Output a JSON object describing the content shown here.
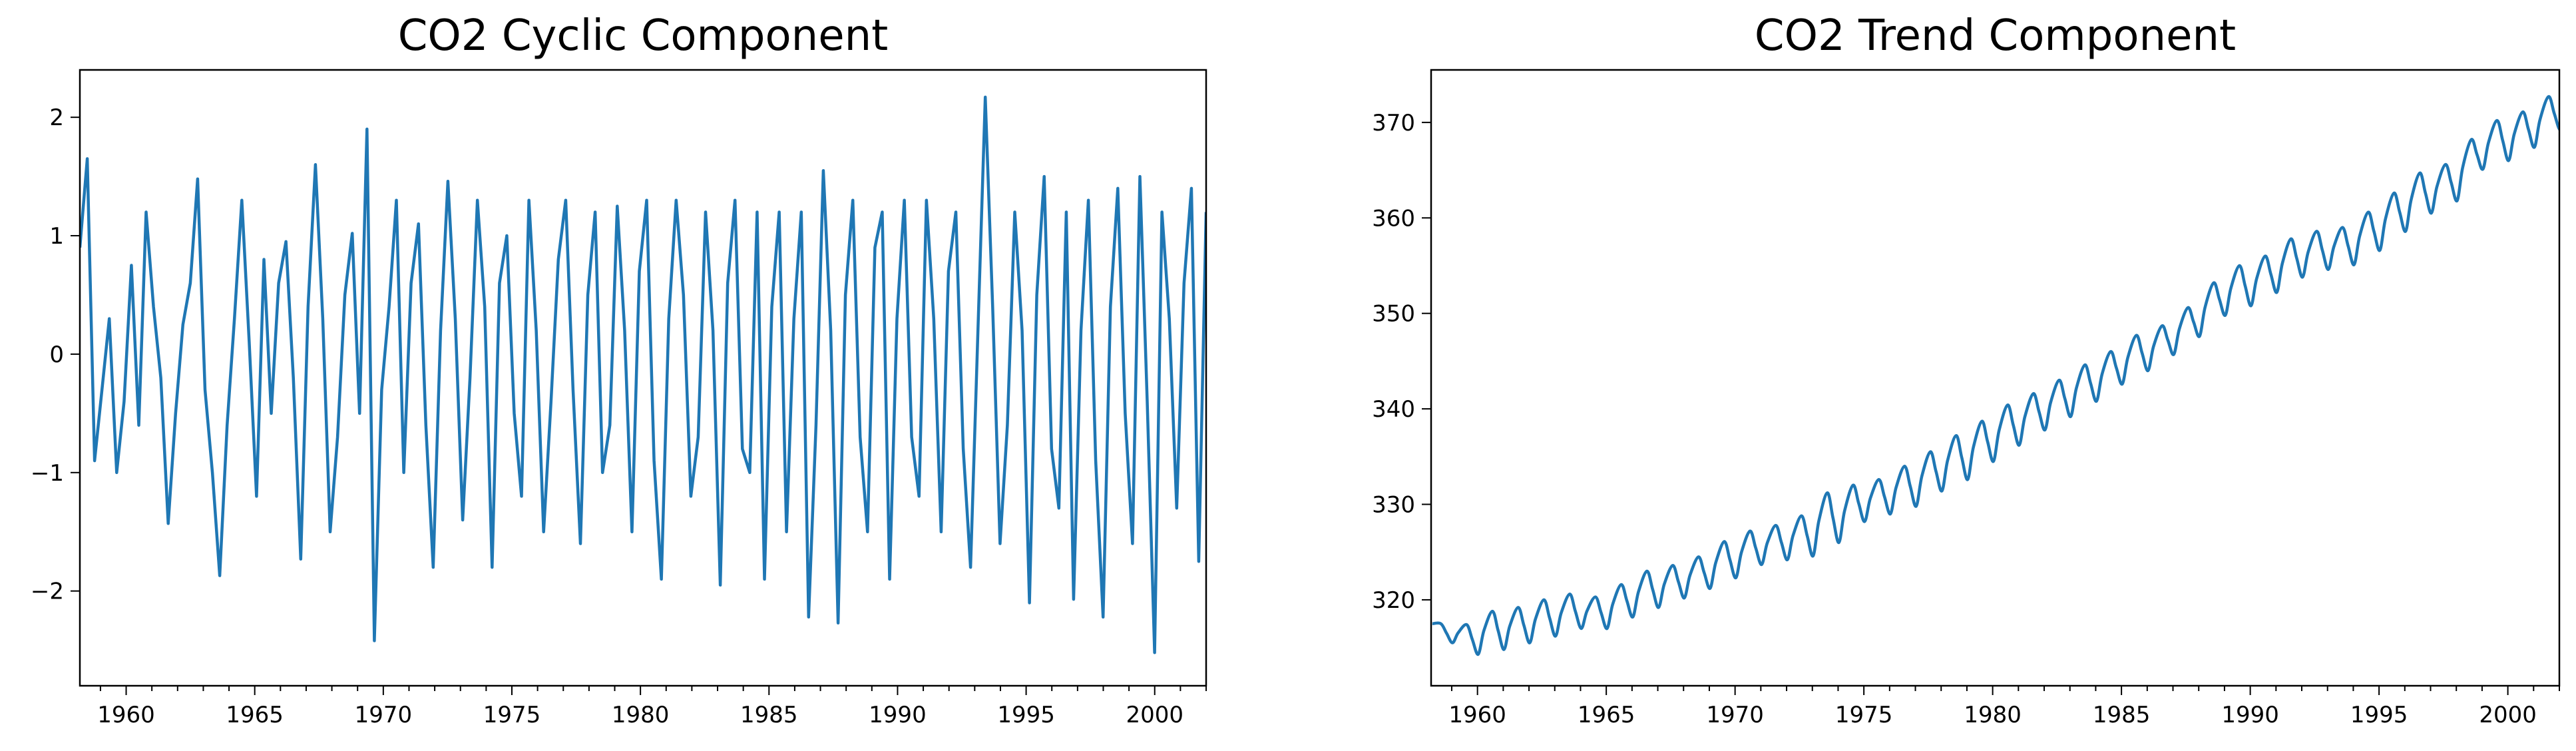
{
  "chart_data": [
    {
      "type": "line",
      "title": "CO2 Cyclic Component",
      "xlabel": "",
      "ylabel": "",
      "xlim": [
        1958.2,
        2002.0
      ],
      "ylim": [
        -2.8,
        2.4
      ],
      "xticks": [
        1960,
        1965,
        1970,
        1975,
        1980,
        1985,
        1990,
        1995,
        2000
      ],
      "xtick_labels": [
        "1960",
        "1965",
        "1970",
        "1975",
        "1980",
        "1985",
        "1990",
        "1995",
        "2000"
      ],
      "yticks": [
        -2,
        -1,
        0,
        1,
        2
      ],
      "ytick_labels": [
        "−2",
        "−1",
        "0",
        "1",
        "2"
      ],
      "grid": false,
      "series": [
        {
          "color": "#1f77b4",
          "x_start": 1958.25,
          "x_step": 0.0833,
          "values": [
            0.9,
            1.65,
            -0.9,
            -0.3,
            0.3,
            -1.0,
            -0.4,
            0.75,
            -0.6,
            1.2,
            0.4,
            -0.2,
            -1.43,
            -0.5,
            0.25,
            0.6,
            1.48,
            -0.3,
            -1.0,
            -1.87,
            -0.6,
            0.3,
            1.3,
            0.1,
            -1.2,
            0.8,
            -0.5,
            0.6,
            0.95,
            -0.2,
            -1.73,
            0.4,
            1.6,
            0.3,
            -1.5,
            -0.7,
            0.5,
            1.02,
            -0.5,
            1.9,
            -2.42,
            -0.3,
            0.4,
            1.3,
            -1.0,
            0.6,
            1.1,
            -0.6,
            -1.8,
            0.2,
            1.46,
            0.3,
            -1.4,
            -0.2,
            1.3,
            0.4,
            -1.8,
            0.6,
            1.0,
            -0.5,
            -1.2,
            1.3,
            0.2,
            -1.5,
            -0.4,
            0.8,
            1.3,
            -0.3,
            -1.6,
            0.5,
            1.2,
            -1.0,
            -0.6,
            1.25,
            0.2,
            -1.5,
            0.7,
            1.3,
            -0.9,
            -1.9,
            0.3,
            1.3,
            0.5,
            -1.2,
            -0.7,
            1.2,
            0.2,
            -1.95,
            0.6,
            1.3,
            -0.8,
            -1.0,
            1.2,
            -1.9,
            0.4,
            1.2,
            -1.5,
            0.3,
            1.2,
            -2.22,
            -0.6,
            1.55,
            0.2,
            -2.27,
            0.5,
            1.3,
            -0.7,
            -1.5,
            0.9,
            1.2,
            -1.9,
            0.3,
            1.3,
            -0.7,
            -1.2,
            1.3,
            0.3,
            -1.5,
            0.7,
            1.2,
            -0.8,
            -1.8,
            0.2,
            2.17,
            0.4,
            -1.6,
            -0.6,
            1.2,
            0.2,
            -2.1,
            0.5,
            1.5,
            -0.8,
            -1.3,
            1.2,
            -2.07,
            0.2,
            1.3,
            -0.9,
            -2.22,
            0.4,
            1.4,
            -0.5,
            -1.6,
            1.5,
            -0.4,
            -2.52,
            1.2,
            0.3,
            -1.3,
            0.6,
            1.4,
            -1.75,
            1.2
          ]
        }
      ]
    },
    {
      "type": "line",
      "title": "CO2 Trend Component",
      "xlabel": "",
      "ylabel": "",
      "xlim": [
        1958.2,
        2002.0
      ],
      "ylim": [
        311.0,
        375.5
      ],
      "xticks": [
        1960,
        1965,
        1970,
        1975,
        1980,
        1985,
        1990,
        1995,
        2000
      ],
      "xtick_labels": [
        "1960",
        "1965",
        "1970",
        "1975",
        "1980",
        "1985",
        "1990",
        "1995",
        "2000"
      ],
      "yticks": [
        320,
        330,
        340,
        350,
        360,
        370
      ],
      "ytick_labels": [
        "320",
        "330",
        "340",
        "350",
        "360",
        "370"
      ],
      "grid": false,
      "series": [
        {
          "color": "#1f77b4",
          "x_start": 1958.25,
          "x_step": 0.0833,
          "annual_peaks": [
            317.5,
            317.4,
            318.8,
            319.2,
            320.0,
            320.6,
            320.3,
            321.6,
            323.0,
            323.6,
            324.5,
            326.1,
            327.2,
            327.8,
            328.8,
            331.2,
            332.0,
            332.6,
            334.0,
            335.5,
            337.2,
            338.7,
            340.4,
            341.6,
            343.0,
            344.6,
            346.0,
            347.7,
            348.7,
            350.6,
            353.2,
            355.0,
            356.0,
            357.8,
            358.6,
            359.0,
            360.6,
            362.6,
            364.7,
            365.6,
            368.2,
            370.2,
            371.1,
            372.7
          ],
          "annual_troughs": [
            315.5,
            314.3,
            314.8,
            315.5,
            316.2,
            317.0,
            317.0,
            318.2,
            319.2,
            320.2,
            321.2,
            322.3,
            323.7,
            324.2,
            324.6,
            326.0,
            328.2,
            329.0,
            329.8,
            331.4,
            332.6,
            334.5,
            336.2,
            337.8,
            339.2,
            340.8,
            342.6,
            344.0,
            345.7,
            347.6,
            349.8,
            350.8,
            352.2,
            353.8,
            354.6,
            355.1,
            356.6,
            358.6,
            360.5,
            361.8,
            365.1,
            366.0,
            367.4,
            369.2
          ],
          "final_value": 370.3
        }
      ]
    }
  ]
}
